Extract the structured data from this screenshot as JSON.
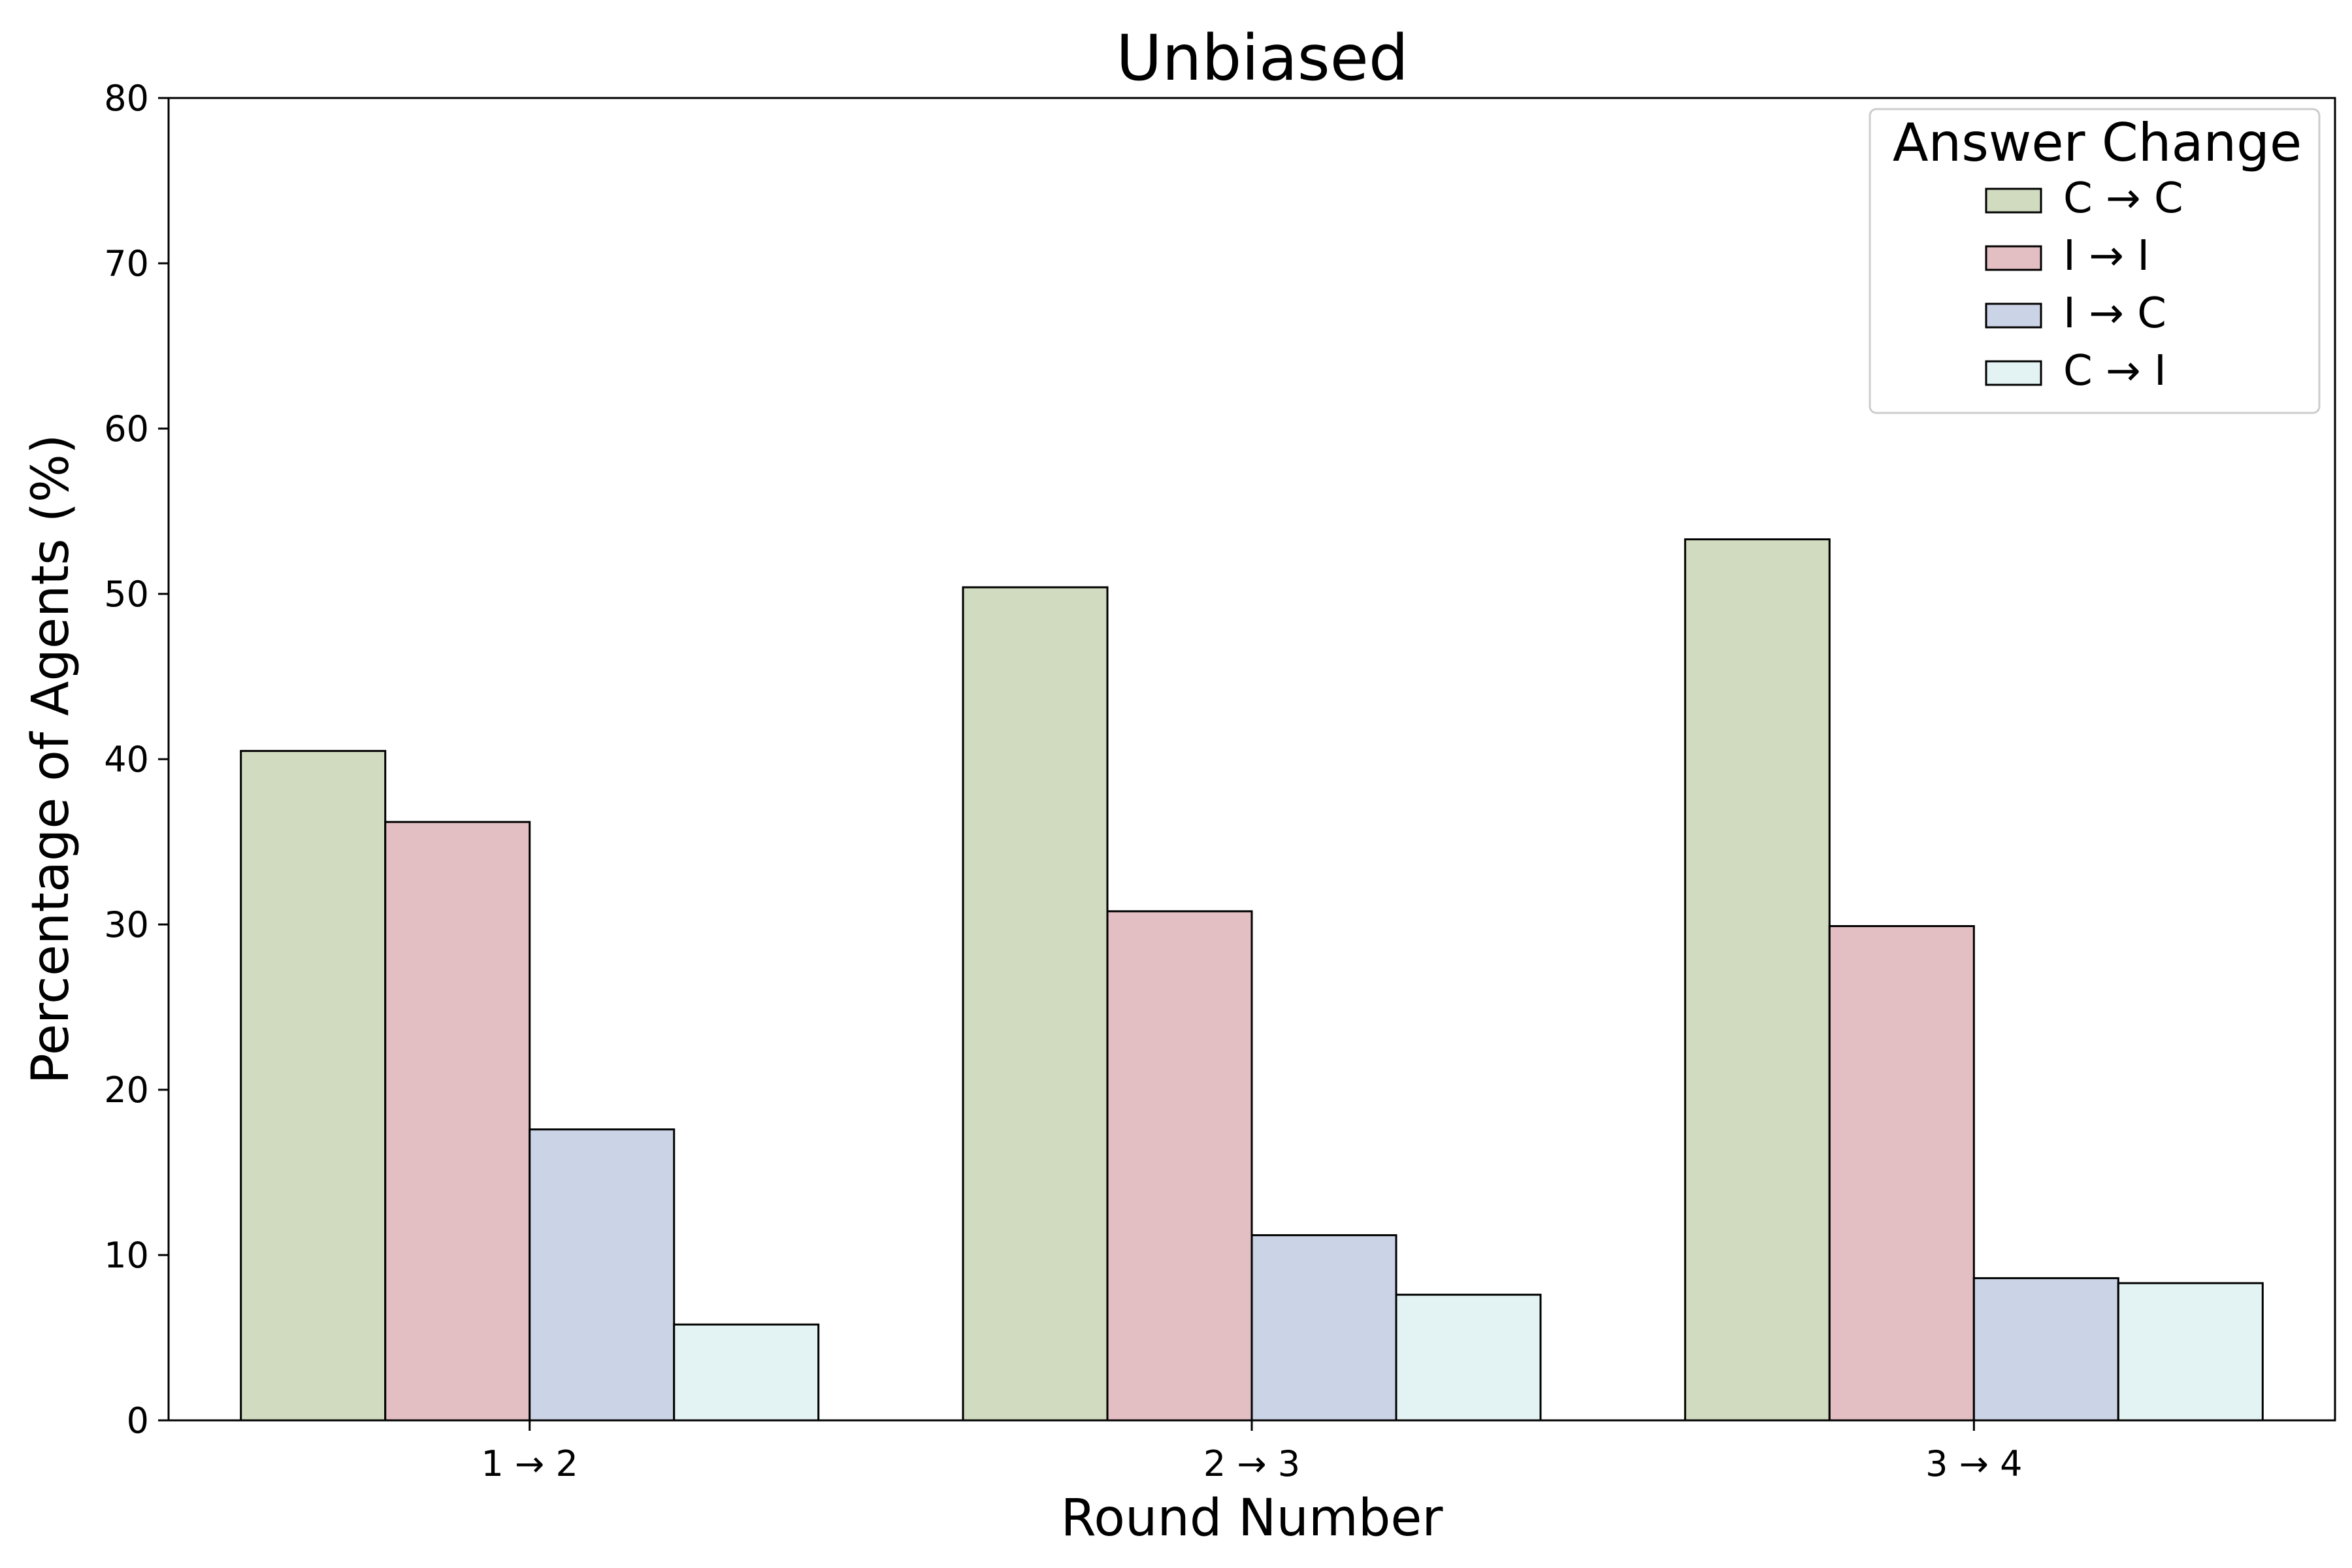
{
  "chart_data": {
    "type": "bar",
    "title": "Unbiased",
    "xlabel": "Round Number",
    "ylabel": "Percentage of Agents (%)",
    "ylim": [
      0,
      80
    ],
    "yticks": [
      0,
      10,
      20,
      30,
      40,
      50,
      60,
      70,
      80
    ],
    "categories": [
      "1 → 2",
      "2 → 3",
      "3 → 4"
    ],
    "legend_title": "Answer Change",
    "legend_position": "top-right",
    "grid": false,
    "series": [
      {
        "name": "C → C",
        "color": "#d1dbbf",
        "values": [
          40.5,
          50.4,
          53.3
        ]
      },
      {
        "name": "I → I",
        "color": "#e3bec2",
        "values": [
          36.2,
          30.8,
          29.9
        ]
      },
      {
        "name": "I → C",
        "color": "#cbd4e6",
        "values": [
          17.6,
          11.2,
          8.6
        ]
      },
      {
        "name": "C → I",
        "color": "#e3f2f2",
        "values": [
          5.8,
          7.6,
          8.3
        ]
      }
    ]
  }
}
